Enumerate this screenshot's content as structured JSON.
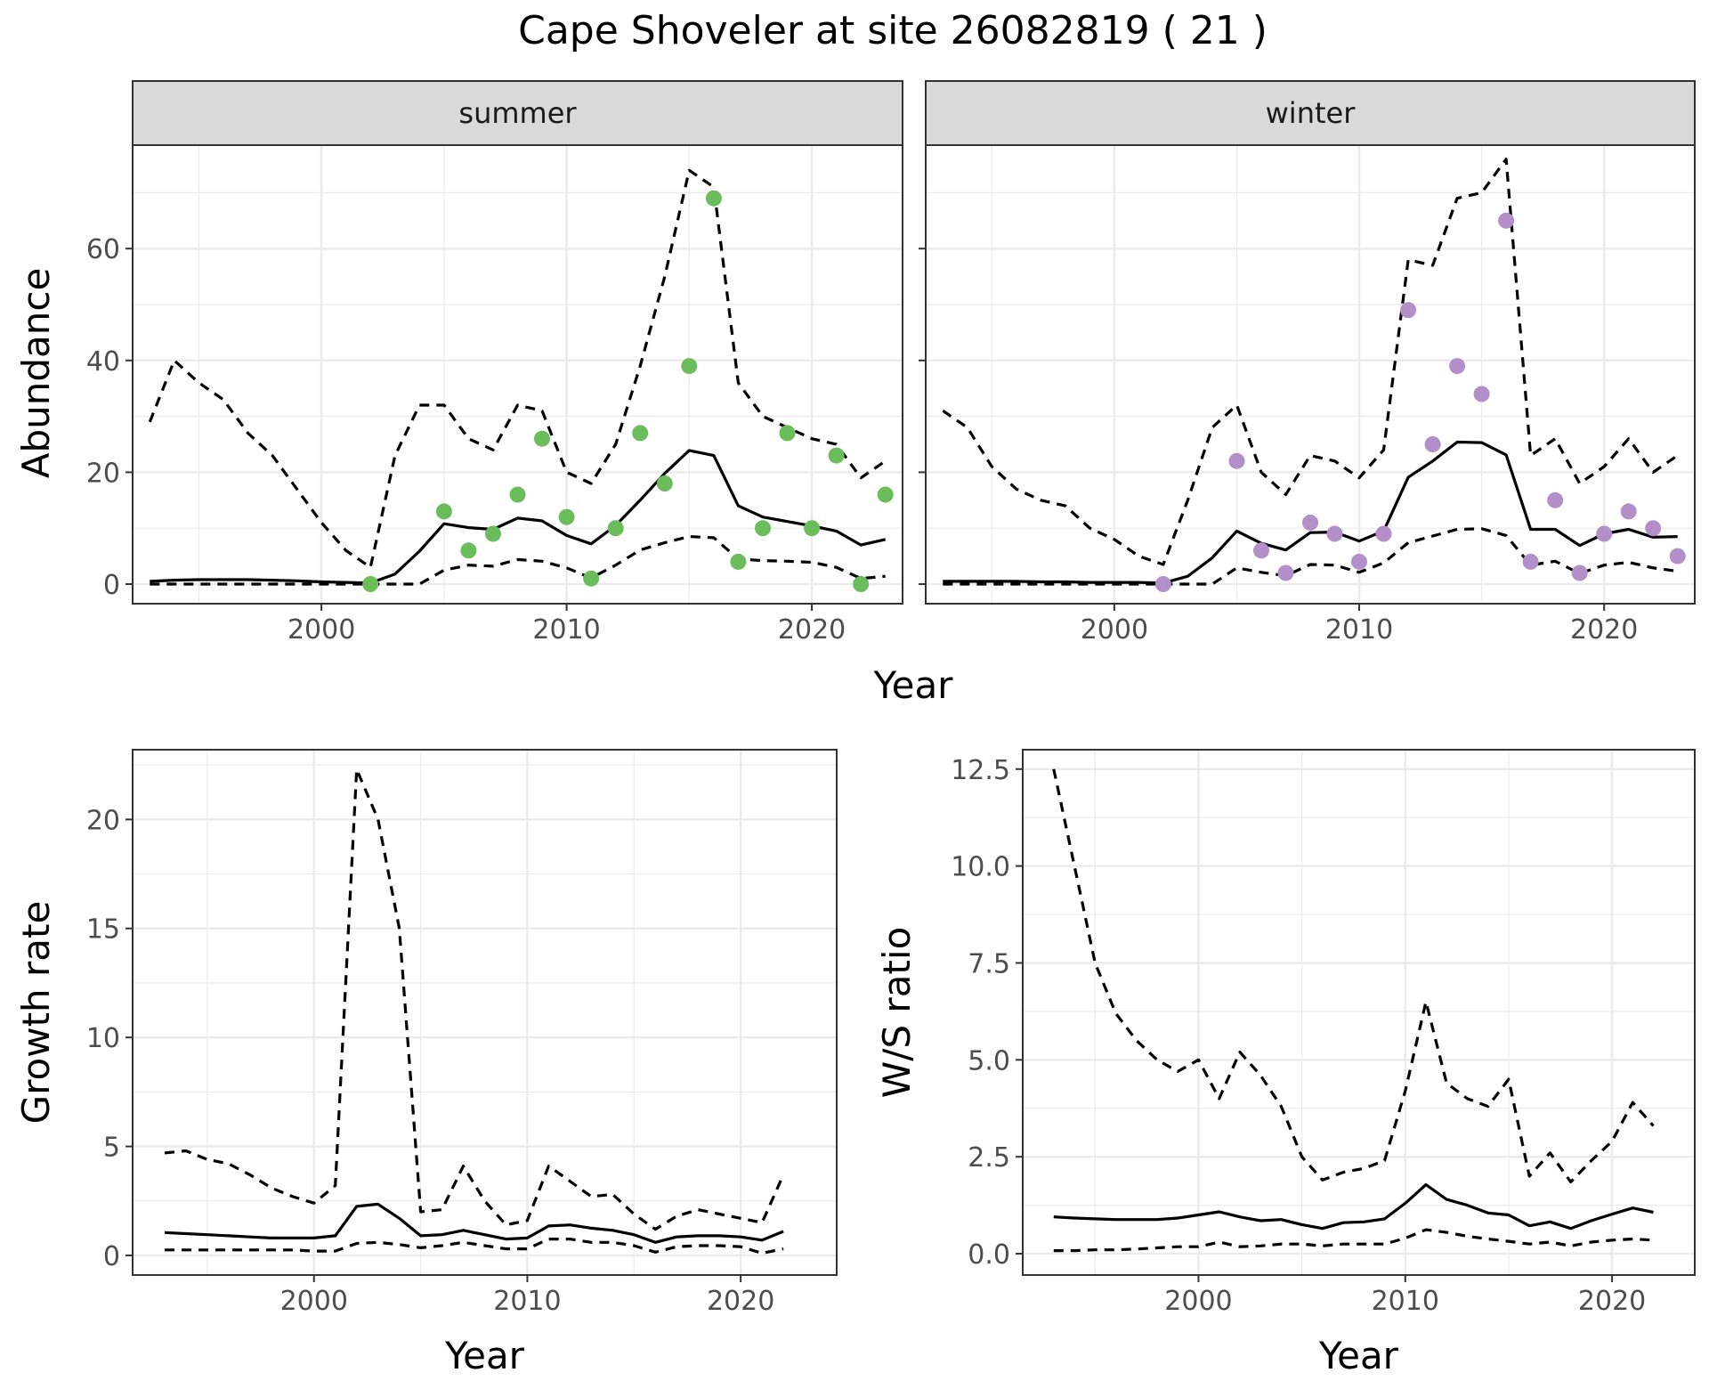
{
  "title": "Cape Shoveler at site 26082819 ( 21 )",
  "colors": {
    "summer_points": "#6BBD5B",
    "winter_points": "#B38FC9",
    "line": "#000000",
    "strip_bg": "#D9D9D9",
    "grid_major": "#EBEBEB",
    "panel_border": "#333333"
  },
  "chart_data": [
    {
      "type": "line",
      "panel": "abundance",
      "facets": [
        "summer",
        "winter"
      ],
      "xlabel": "Year",
      "ylabel": "Abundance",
      "xlim": [
        1992.3,
        2023.7
      ],
      "ylim": [
        -3.5,
        78.5
      ],
      "xticks": [
        2000,
        2010,
        2020
      ],
      "yticks": [
        0,
        20,
        40,
        60
      ],
      "summer": {
        "x": [
          1993,
          1994,
          1995,
          1996,
          1997,
          1998,
          1999,
          2000,
          2001,
          2002,
          2003,
          2004,
          2005,
          2006,
          2007,
          2008,
          2009,
          2010,
          2011,
          2012,
          2013,
          2014,
          2015,
          2016,
          2017,
          2018,
          2019,
          2020,
          2021,
          2022,
          2023
        ],
        "mean": [
          0.5,
          0.7,
          0.8,
          0.8,
          0.8,
          0.7,
          0.6,
          0.4,
          0.3,
          0.2,
          1.8,
          5.9,
          10.8,
          10.1,
          9.8,
          11.8,
          11.3,
          8.7,
          7.2,
          10.5,
          15.0,
          19.8,
          23.9,
          23.0,
          14.0,
          12.0,
          11.2,
          10.4,
          9.5,
          7.0,
          8.0
        ],
        "upper": [
          29,
          40,
          36,
          33,
          27,
          23,
          17,
          11,
          6,
          3,
          23,
          32,
          32,
          26,
          24,
          32,
          31,
          20,
          18,
          25,
          39,
          55,
          74,
          71,
          36,
          30,
          28,
          26,
          25,
          19,
          22
        ],
        "lower": [
          0,
          0,
          0,
          0,
          0,
          0,
          0,
          0,
          0,
          0,
          0,
          0,
          2.5,
          3.4,
          3.2,
          4.4,
          4.1,
          2.9,
          1.1,
          3.4,
          6.1,
          7.4,
          8.5,
          8.3,
          4.5,
          4.2,
          4.1,
          3.9,
          3.0,
          1.0,
          1.4
        ],
        "points_x": [
          2002,
          2005,
          2006,
          2007,
          2008,
          2009,
          2010,
          2011,
          2012,
          2013,
          2014,
          2015,
          2016,
          2017,
          2018,
          2019,
          2020,
          2021,
          2022,
          2023
        ],
        "points_y": [
          0,
          13,
          6,
          9,
          16,
          26,
          12,
          1,
          10,
          27,
          18,
          39,
          69,
          4,
          10,
          27,
          10,
          23,
          0,
          16
        ]
      },
      "winter": {
        "x": [
          1993,
          1994,
          1995,
          1996,
          1997,
          1998,
          1999,
          2000,
          2001,
          2002,
          2003,
          2004,
          2005,
          2006,
          2007,
          2008,
          2009,
          2010,
          2011,
          2012,
          2013,
          2014,
          2015,
          2016,
          2017,
          2018,
          2019,
          2020,
          2021,
          2022,
          2023
        ],
        "mean": [
          0.5,
          0.5,
          0.5,
          0.5,
          0.4,
          0.4,
          0.3,
          0.3,
          0.3,
          0.2,
          1.4,
          4.7,
          9.5,
          7.3,
          6.1,
          9.2,
          9.3,
          7.7,
          9.5,
          19.1,
          22.0,
          25.4,
          25.3,
          23.1,
          9.8,
          9.8,
          6.9,
          9.0,
          9.8,
          8.4,
          8.5
        ],
        "upper": [
          31,
          28,
          21,
          17,
          15,
          14,
          10,
          8,
          5,
          3.5,
          15,
          28,
          32,
          20,
          16,
          23,
          22,
          19,
          24,
          58,
          57,
          69,
          70,
          76,
          23,
          26,
          18,
          21,
          26,
          20,
          23
        ],
        "lower": [
          0,
          0,
          0,
          0,
          0,
          0,
          0,
          0,
          0,
          0,
          0,
          0,
          2.9,
          2.1,
          1.5,
          3.5,
          3.4,
          2.1,
          3.8,
          7.4,
          8.6,
          9.8,
          9.9,
          8.7,
          3.4,
          4.1,
          1.9,
          3.4,
          3.9,
          2.9,
          2.3
        ],
        "points_x": [
          2002,
          2005,
          2006,
          2007,
          2008,
          2009,
          2010,
          2011,
          2012,
          2013,
          2014,
          2015,
          2016,
          2017,
          2018,
          2019,
          2020,
          2021,
          2022,
          2023
        ],
        "points_y": [
          0,
          22,
          6,
          2,
          11,
          9,
          4,
          9,
          49,
          25,
          39,
          34,
          65,
          4,
          15,
          2,
          9,
          13,
          10,
          5
        ]
      }
    },
    {
      "type": "line",
      "panel": "growth",
      "xlabel": "Year",
      "ylabel": "Growth rate",
      "xlim": [
        1991.5,
        2024.5
      ],
      "ylim": [
        -0.9,
        23.2
      ],
      "xticks": [
        2000,
        2010,
        2020
      ],
      "yticks": [
        0,
        5,
        10,
        15,
        20
      ],
      "x": [
        1993,
        1994,
        1995,
        1996,
        1997,
        1998,
        1999,
        2000,
        2001,
        2002,
        2003,
        2004,
        2005,
        2006,
        2007,
        2008,
        2009,
        2010,
        2011,
        2012,
        2013,
        2014,
        2015,
        2016,
        2017,
        2018,
        2019,
        2020,
        2021,
        2022
      ],
      "mean": [
        1.05,
        1.0,
        0.95,
        0.9,
        0.85,
        0.8,
        0.8,
        0.8,
        0.9,
        2.25,
        2.35,
        1.7,
        0.9,
        0.95,
        1.15,
        0.95,
        0.75,
        0.8,
        1.35,
        1.4,
        1.25,
        1.15,
        0.95,
        0.6,
        0.85,
        0.9,
        0.9,
        0.85,
        0.7,
        1.1
      ],
      "upper": [
        4.7,
        4.8,
        4.4,
        4.2,
        3.7,
        3.1,
        2.7,
        2.4,
        3.2,
        22.3,
        20.0,
        15.0,
        2.0,
        2.1,
        4.1,
        2.5,
        1.4,
        1.6,
        4.1,
        3.4,
        2.7,
        2.8,
        1.9,
        1.2,
        1.8,
        2.1,
        1.9,
        1.7,
        1.5,
        3.7
      ],
      "lower": [
        0.25,
        0.25,
        0.25,
        0.25,
        0.25,
        0.25,
        0.25,
        0.2,
        0.2,
        0.55,
        0.6,
        0.5,
        0.35,
        0.45,
        0.6,
        0.45,
        0.3,
        0.3,
        0.75,
        0.75,
        0.6,
        0.6,
        0.45,
        0.15,
        0.4,
        0.45,
        0.45,
        0.4,
        0.1,
        0.3
      ]
    },
    {
      "type": "line",
      "panel": "ratio",
      "xlabel": "Year",
      "ylabel": "W/S ratio",
      "xlim": [
        1991.5,
        2024.0
      ],
      "ylim": [
        -0.55,
        13.0
      ],
      "xticks": [
        2000,
        2010,
        2020
      ],
      "yticks": [
        0.0,
        2.5,
        5.0,
        7.5,
        10.0,
        12.5
      ],
      "yticklabels": [
        "0.0",
        "2.5",
        "5.0",
        "7.5",
        "10.0",
        "12.5"
      ],
      "x": [
        1993,
        1994,
        1995,
        1996,
        1997,
        1998,
        1999,
        2000,
        2001,
        2002,
        2003,
        2004,
        2005,
        2006,
        2007,
        2008,
        2009,
        2010,
        2011,
        2012,
        2013,
        2014,
        2015,
        2016,
        2017,
        2018,
        2019,
        2020,
        2021,
        2022
      ],
      "mean": [
        0.95,
        0.92,
        0.9,
        0.88,
        0.88,
        0.88,
        0.92,
        1.0,
        1.08,
        0.95,
        0.85,
        0.88,
        0.75,
        0.65,
        0.8,
        0.82,
        0.9,
        1.3,
        1.78,
        1.4,
        1.25,
        1.05,
        1.0,
        0.72,
        0.82,
        0.65,
        0.85,
        1.02,
        1.18,
        1.07
      ],
      "upper": [
        12.5,
        10.0,
        7.5,
        6.2,
        5.5,
        5.0,
        4.7,
        5.0,
        4.0,
        5.2,
        4.6,
        3.8,
        2.5,
        1.9,
        2.1,
        2.2,
        2.4,
        4.2,
        6.5,
        4.4,
        4.0,
        3.8,
        4.5,
        2.0,
        2.6,
        1.85,
        2.4,
        2.9,
        3.9,
        3.3
      ],
      "lower": [
        0.08,
        0.08,
        0.1,
        0.1,
        0.12,
        0.15,
        0.18,
        0.18,
        0.3,
        0.18,
        0.2,
        0.25,
        0.25,
        0.2,
        0.25,
        0.25,
        0.25,
        0.4,
        0.62,
        0.55,
        0.45,
        0.38,
        0.32,
        0.25,
        0.3,
        0.2,
        0.3,
        0.35,
        0.38,
        0.35
      ]
    }
  ]
}
